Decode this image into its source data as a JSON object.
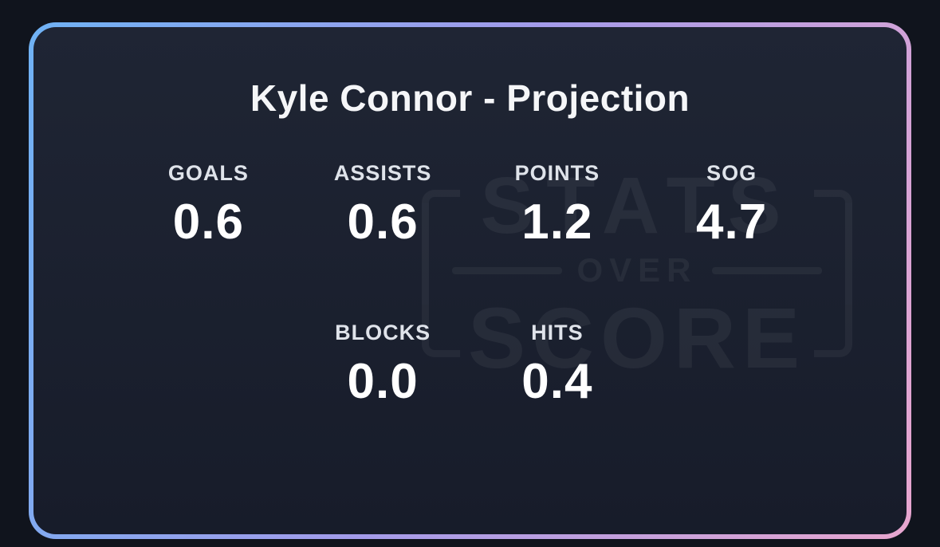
{
  "card": {
    "title": "Kyle Connor - Projection",
    "stats_row1": [
      {
        "label": "GOALS",
        "value": "0.6"
      },
      {
        "label": "ASSISTS",
        "value": "0.6"
      },
      {
        "label": "POINTS",
        "value": "1.2"
      },
      {
        "label": "SOG",
        "value": "4.7"
      }
    ],
    "stats_row2": [
      {
        "label": "BLOCKS",
        "value": "0.0"
      },
      {
        "label": "HITS",
        "value": "0.4"
      }
    ],
    "watermark": {
      "line1": "STATS",
      "line2": "OVER",
      "line3": "SCORE"
    }
  },
  "colors": {
    "outer_bg": "#10141d",
    "card_bg_top": "#1f2534",
    "card_bg_bottom": "#171c2a",
    "border_start": "#6fb2f4",
    "border_mid": "#a39bea",
    "border_end": "#e8a6cf",
    "label_color": "#dfe3ea",
    "value_color": "#ffffff"
  },
  "chart_data": {
    "type": "table",
    "title": "Kyle Connor - Projection",
    "categories": [
      "GOALS",
      "ASSISTS",
      "POINTS",
      "SOG",
      "BLOCKS",
      "HITS"
    ],
    "values": [
      0.6,
      0.6,
      1.2,
      4.7,
      0.0,
      0.4
    ]
  }
}
